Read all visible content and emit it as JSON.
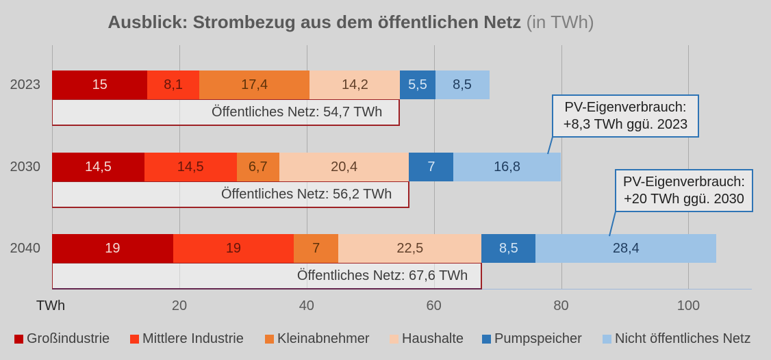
{
  "title": {
    "main": "Ausblick: Strombezug aus dem öffentlichen Netz",
    "suffix": "(in TWh)"
  },
  "chart_data": {
    "type": "bar",
    "stacked": true,
    "orientation": "horizontal",
    "title": "Ausblick: Strombezug aus dem öffentlichen Netz (in TWh)",
    "categories": [
      "2023",
      "2030",
      "2040"
    ],
    "series": [
      {
        "name": "Großindustrie",
        "color": "#C00000",
        "label_color": "#F4DAD4",
        "values": [
          15,
          14.5,
          19
        ]
      },
      {
        "name": "Mittlere Industrie",
        "color": "#FB3A18",
        "label_color": "#64150A",
        "values": [
          8.1,
          14.5,
          19
        ]
      },
      {
        "name": "Kleinabnehmer",
        "color": "#ED7D31",
        "label_color": "#5E3209",
        "values": [
          17.4,
          6.7,
          7
        ]
      },
      {
        "name": "Haushalte",
        "color": "#F8CBAD",
        "label_color": "#61402A",
        "values": [
          14.2,
          20.4,
          22.5
        ]
      },
      {
        "name": "Pumpspeicher",
        "color": "#2E75B6",
        "label_color": "#D5E5F4",
        "values": [
          5.5,
          7,
          8.5
        ]
      },
      {
        "name": "Nicht öffentliches Netz",
        "color": "#9DC3E6",
        "label_color": "#1F3C5E",
        "values": [
          8.5,
          16.8,
          28.4
        ]
      }
    ],
    "data_labels": [
      [
        "15",
        "8,1",
        "17,4",
        "14,2",
        "5,5",
        "8,5"
      ],
      [
        "14,5",
        "14,5",
        "6,7",
        "20,4",
        "7",
        "16,8"
      ],
      [
        "19",
        "19",
        "7",
        "22,5",
        "8,5",
        "28,4"
      ]
    ],
    "net_boxes": [
      {
        "label": "Öffentliches Netz: 54,7 TWh",
        "value": 54.7
      },
      {
        "label": "Öffentliches Netz: 56,2 TWh",
        "value": 56.2
      },
      {
        "label": "Öffentliches Netz: 67,6 TWh",
        "value": 67.6
      }
    ],
    "x_ticks": [
      20,
      40,
      60,
      80,
      100
    ],
    "x_tick_labels": [
      "20",
      "40",
      "60",
      "80",
      "100"
    ],
    "x_axis_unit": "TWh",
    "xlim": [
      0,
      110
    ],
    "grid": true,
    "legend_position": "bottom"
  },
  "callouts": [
    {
      "line1": "PV-Eigenverbrauch:",
      "line2": "+8,3 TWh ggü. 2023"
    },
    {
      "line1": "PV-Eigenverbrauch:",
      "line2": "+20 TWh ggü. 2030"
    }
  ],
  "colors": {
    "background": "#D6D6D6",
    "gridline": "#ABABAB",
    "axis_line": "#9FB8DA",
    "net_box_border": "#9E2125",
    "callout_border": "#2E74B5",
    "callout_fill": "#E9E8E8"
  }
}
